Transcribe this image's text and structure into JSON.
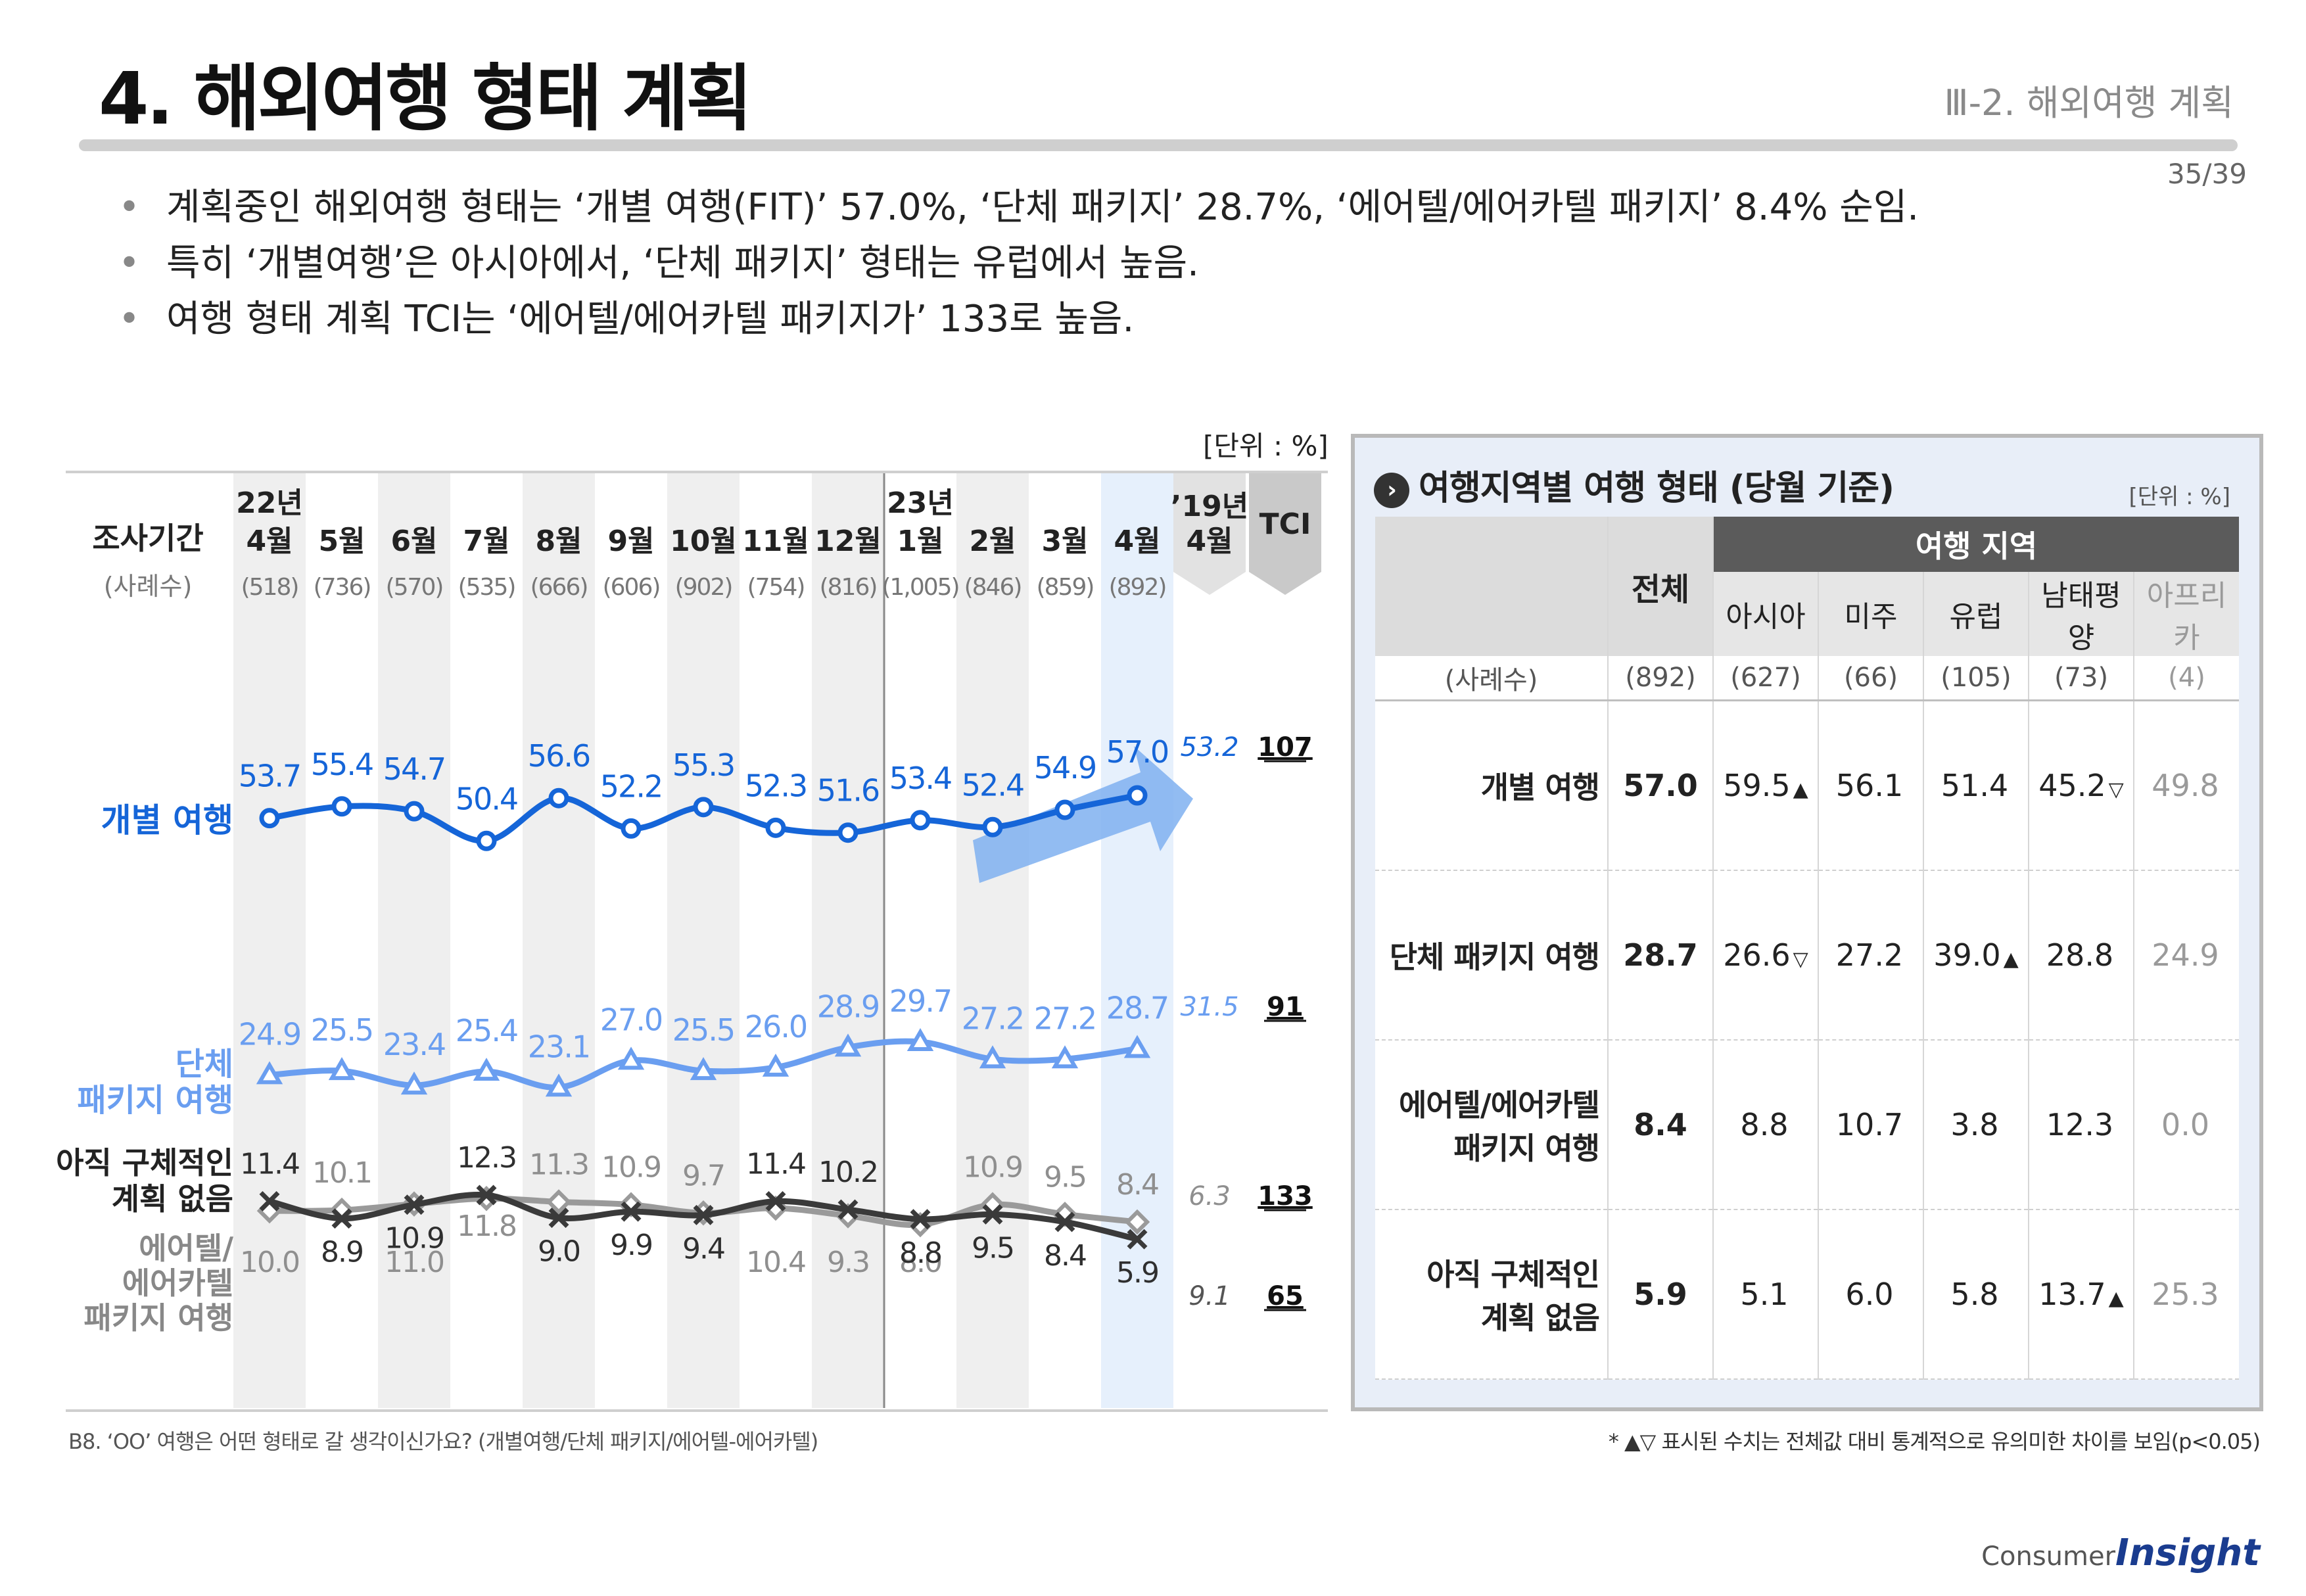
{
  "header": {
    "title": "4. 해외여행 형태 계획",
    "section": "Ⅲ-2. 해외여행 계획",
    "page": "35/39"
  },
  "bullets": [
    "계획중인 해외여행 형태는 ‘개별 여행(FIT)’ 57.0%, ‘단체 패키지’ 28.7%, ‘에어텔/에어카텔 패키지’ 8.4% 순임.",
    "특히 ‘개별여행’은 아시아에서, ‘단체 패키지’ 형태는 유럽에서 높음.",
    "여행 형태 계획 TCI는 ‘에어텔/에어카텔 패키지가’ 133로 높음."
  ],
  "chart_data": {
    "type": "line",
    "unit": "[단위 : %]",
    "row_header": "조사기간",
    "count_header": "(사례수)",
    "year_labels": [
      {
        "index": 0,
        "label": "22년"
      },
      {
        "index": 9,
        "label": "23년"
      }
    ],
    "categories": [
      "4월",
      "5월",
      "6월",
      "7월",
      "8월",
      "9월",
      "10월",
      "11월",
      "12월",
      "1월",
      "2월",
      "3월",
      "4월"
    ],
    "counts": [
      "(518)",
      "(736)",
      "(570)",
      "(535)",
      "(666)",
      "(606)",
      "(902)",
      "(754)",
      "(816)",
      "(1,005)",
      "(846)",
      "(859)",
      "(892)"
    ],
    "ref_label_year": "’19년",
    "ref_label_month": "4월",
    "tci_label": "TCI",
    "ylim": [
      0,
      60
    ],
    "series": [
      {
        "name": "개별 여행",
        "marker": "circle",
        "color": "#1565d8",
        "values": [
          53.7,
          55.4,
          54.7,
          50.4,
          56.6,
          52.2,
          55.3,
          52.3,
          51.6,
          53.4,
          52.4,
          54.9,
          57.0
        ],
        "ref2019": 53.2,
        "tci": 107
      },
      {
        "name": "단체 패키지 여행",
        "marker": "triangle",
        "color": "#6a9ef0",
        "values": [
          24.9,
          25.5,
          23.4,
          25.4,
          23.1,
          27.0,
          25.5,
          26.0,
          28.9,
          29.7,
          27.2,
          27.2,
          28.7
        ],
        "ref2019": 31.5,
        "tci": 91
      },
      {
        "name": "에어텔/ 에어카텔 패키지 여행",
        "marker": "diamond",
        "color": "#9a9a9a",
        "values": [
          10.0,
          10.1,
          11.0,
          11.8,
          11.3,
          10.9,
          9.7,
          10.4,
          9.3,
          8.0,
          10.9,
          9.5,
          8.4
        ],
        "ref2019": 6.3,
        "tci": 133
      },
      {
        "name": "아직 구체적인 계획 없음",
        "marker": "x",
        "color": "#3a3a3a",
        "values": [
          11.4,
          8.9,
          10.9,
          12.3,
          9.0,
          9.9,
          9.4,
          11.4,
          10.2,
          8.8,
          9.5,
          8.4,
          5.9
        ],
        "ref2019": 9.1,
        "tci": 65
      }
    ],
    "series_labels": {
      "fit": "개별 여행",
      "pkg_1": "단체",
      "pkg_2": "패키지 여행",
      "none_1": "아직 구체적인",
      "none_2": "계획 없음",
      "air_1": "에어텔/",
      "air_2": "에어카텔",
      "air_3": "패키지 여행"
    }
  },
  "panel": {
    "title": "여행지역별 여행 형태 (당월 기준)",
    "unit": "[단위 : %]",
    "col_total": "전체",
    "col_group": "여행 지역",
    "regions": [
      "아시아",
      "미주",
      "유럽",
      "남태평양",
      "아프리카"
    ],
    "count_label": "(사례수)",
    "counts": [
      "(892)",
      "(627)",
      "(66)",
      "(105)",
      "(73)",
      "(4)"
    ],
    "rows": [
      {
        "label_1": "개별 여행",
        "label_2": "",
        "total": "57.0",
        "values": [
          "59.5",
          "56.1",
          "51.4",
          "45.2",
          "49.8"
        ],
        "marks": [
          "▲",
          "",
          "",
          "▽",
          ""
        ]
      },
      {
        "label_1": "단체 패키지 여행",
        "label_2": "",
        "total": "28.7",
        "values": [
          "26.6",
          "27.2",
          "39.0",
          "28.8",
          "24.9"
        ],
        "marks": [
          "▽",
          "",
          "▲",
          "",
          ""
        ]
      },
      {
        "label_1": "에어텔/에어카텔",
        "label_2": "패키지 여행",
        "total": "8.4",
        "values": [
          "8.8",
          "10.7",
          "3.8",
          "12.3",
          "0.0"
        ],
        "marks": [
          "",
          "",
          "",
          "",
          ""
        ]
      },
      {
        "label_1": "아직 구체적인",
        "label_2": "계획 없음",
        "total": "5.9",
        "values": [
          "5.1",
          "6.0",
          "5.8",
          "13.7",
          "25.3"
        ],
        "marks": [
          "",
          "",
          "",
          "▲",
          ""
        ]
      }
    ]
  },
  "footer": {
    "question": "B8. ‘OO’ 여행은 어떤 형태로 갈 생각이신가요? (개별여행/단체 패키지/에어텔-에어카텔)",
    "note": "* ▲▽ 표시된 수치는 전체값 대비 통계적으로 유의미한 차이를 보임(p<0.05)",
    "logo_small": "Consumer",
    "logo_big": "Insight"
  }
}
